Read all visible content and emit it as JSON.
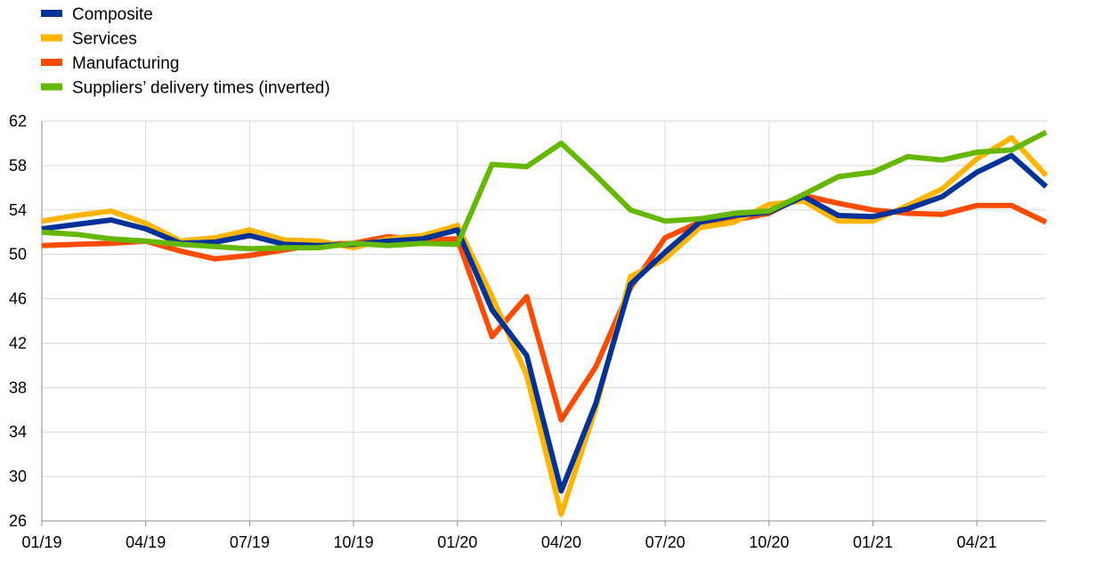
{
  "chart_data": {
    "type": "line",
    "title": "",
    "xlabel": "",
    "ylabel": "",
    "ylim": [
      26,
      62
    ],
    "yticks": [
      26,
      30,
      34,
      38,
      42,
      46,
      50,
      54,
      58,
      62
    ],
    "x": [
      "01/19",
      "02/19",
      "03/19",
      "04/19",
      "05/19",
      "06/19",
      "07/19",
      "08/19",
      "09/19",
      "10/19",
      "11/19",
      "12/19",
      "01/20",
      "02/20",
      "03/20",
      "04/20",
      "05/20",
      "06/20",
      "07/20",
      "08/20",
      "09/20",
      "10/20",
      "11/20",
      "12/20",
      "01/21",
      "02/21",
      "03/21",
      "04/21",
      "05/21",
      "06/21"
    ],
    "xtick_labels": [
      "01/19",
      "04/19",
      "07/19",
      "10/19",
      "01/20",
      "04/20",
      "07/20",
      "10/20",
      "01/21",
      "04/21"
    ],
    "grid": true,
    "legend_position": "top-left",
    "series": [
      {
        "name": "Composite",
        "color": "#003299",
        "values": [
          52.3,
          52.7,
          53.1,
          52.3,
          51.0,
          51.1,
          51.7,
          50.9,
          50.8,
          50.9,
          51.2,
          51.4,
          52.2,
          45.0,
          40.9,
          28.7,
          36.6,
          47.3,
          50.2,
          52.9,
          53.5,
          53.8,
          55.2,
          53.5,
          53.4,
          54.1,
          55.2,
          57.4,
          58.9,
          56.1
        ]
      },
      {
        "name": "Services",
        "color": "#FFB400",
        "values": [
          53.0,
          53.5,
          53.9,
          52.8,
          51.2,
          51.5,
          52.2,
          51.3,
          51.2,
          50.6,
          51.4,
          51.7,
          52.6,
          46.2,
          39.1,
          26.6,
          36.2,
          48.0,
          49.6,
          52.4,
          52.9,
          54.5,
          54.8,
          53.0,
          53.0,
          54.4,
          55.9,
          58.6,
          60.5,
          57.1
        ]
      },
      {
        "name": "Manufacturing",
        "color": "#FF4B00",
        "values": [
          50.8,
          50.9,
          51.0,
          51.2,
          50.3,
          49.6,
          49.9,
          50.4,
          50.9,
          51.0,
          51.6,
          51.3,
          51.4,
          42.6,
          46.2,
          35.1,
          39.9,
          47.0,
          51.5,
          52.9,
          53.1,
          53.7,
          55.3,
          54.6,
          54.0,
          53.7,
          53.6,
          54.4,
          54.4,
          52.9
        ]
      },
      {
        "name": "Suppliers’ delivery times (inverted)",
        "color": "#65B800",
        "values": [
          52.0,
          51.8,
          51.4,
          51.2,
          50.9,
          50.7,
          50.5,
          50.6,
          50.6,
          51.0,
          50.8,
          51.0,
          50.9,
          58.1,
          57.9,
          60.0,
          57.1,
          54.0,
          53.0,
          53.2,
          53.7,
          53.9,
          55.4,
          57.0,
          57.4,
          58.8,
          58.5,
          59.2,
          59.4,
          61.0
        ]
      }
    ]
  }
}
